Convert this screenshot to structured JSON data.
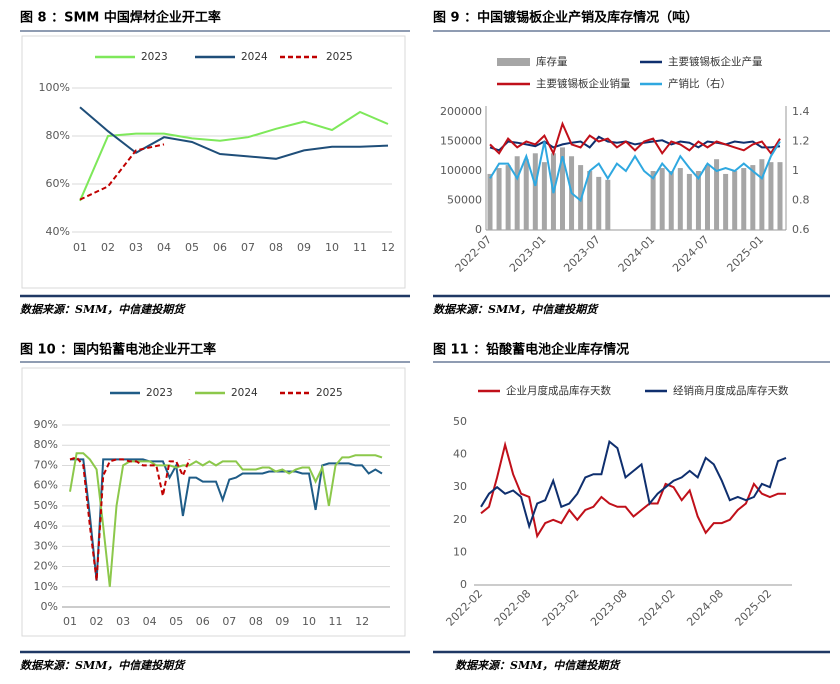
{
  "chart_data": [
    {
      "type": "line",
      "title": "图 8 ：SMM 中国焊材企业开工率",
      "source": "数据来源：SMM，中信建投期货",
      "categories": [
        "01",
        "02",
        "03",
        "04",
        "05",
        "06",
        "07",
        "08",
        "09",
        "10",
        "11",
        "12"
      ],
      "series": [
        {
          "name": "2023",
          "color": "#7ee85a",
          "values": [
            53,
            80,
            81,
            81,
            79,
            78,
            79.5,
            83,
            86,
            82.5,
            90,
            85
          ]
        },
        {
          "name": "2024",
          "color": "#1f4e79",
          "values": [
            92,
            82,
            73,
            79.5,
            77.5,
            72.5,
            71.5,
            70.5,
            74,
            75.5,
            75.5,
            76
          ]
        },
        {
          "name": "2025",
          "color": "#c00000",
          "dashed": true,
          "values": [
            53.5,
            59,
            74,
            76.5,
            null,
            null,
            null,
            null,
            null,
            null,
            null,
            null
          ]
        }
      ],
      "ylim": [
        40,
        100
      ],
      "yticks": [
        {
          "value": 40,
          "label": "40%"
        },
        {
          "value": 60,
          "label": "60%"
        },
        {
          "value": 80,
          "label": "80%"
        },
        {
          "value": 100,
          "label": "100%"
        }
      ],
      "grid": true
    },
    {
      "type": "combo",
      "title": "图 9 ：中国镀锡板企业产销及库存情况（吨）",
      "source": "数据来源：SMM，中信建投期货",
      "categories": [
        "2022-07",
        null,
        null,
        null,
        null,
        null,
        "2023-01",
        null,
        null,
        null,
        null,
        null,
        "2023-07",
        null,
        null,
        null,
        null,
        null,
        "2024-01",
        null,
        null,
        null,
        null,
        null,
        "2024-07",
        null,
        null,
        null,
        null,
        null,
        "2025-01",
        null,
        null
      ],
      "series": [
        {
          "name": "库存量",
          "type": "bar",
          "color": "#a6a6a6",
          "values": [
            95000,
            105000,
            110000,
            125000,
            120000,
            130000,
            115000,
            130000,
            140000,
            125000,
            110000,
            100000,
            90000,
            85000,
            null,
            null,
            null,
            null,
            100000,
            105000,
            100000,
            105000,
            95000,
            100000,
            110000,
            120000,
            95000,
            100000,
            105000,
            110000,
            120000,
            115000,
            115000
          ]
        },
        {
          "name": "主要镀锡板企业产量",
          "type": "line",
          "color": "#0f2f6e",
          "values": [
            140000,
            135000,
            150000,
            148000,
            145000,
            142000,
            150000,
            140000,
            145000,
            148000,
            150000,
            140000,
            158000,
            150000,
            148000,
            150000,
            145000,
            148000,
            150000,
            152000,
            145000,
            150000,
            148000,
            140000,
            150000,
            148000,
            145000,
            150000,
            148000,
            150000,
            140000,
            140000,
            142000
          ]
        },
        {
          "name": "主要镀锡板企业销量",
          "type": "line",
          "color": "#c0101a",
          "values": [
            145000,
            130000,
            155000,
            140000,
            150000,
            145000,
            160000,
            130000,
            180000,
            145000,
            140000,
            160000,
            150000,
            155000,
            140000,
            150000,
            135000,
            150000,
            155000,
            130000,
            150000,
            145000,
            135000,
            150000,
            140000,
            150000,
            145000,
            140000,
            135000,
            145000,
            150000,
            130000,
            155000
          ]
        },
        {
          "name": "产销比（右）",
          "type": "line",
          "axis": "y2",
          "color": "#2fa8e0",
          "values": [
            0.95,
            1.05,
            1.05,
            0.95,
            1.1,
            0.9,
            1.2,
            0.85,
            1.1,
            0.85,
            0.8,
            1.0,
            1.05,
            0.95,
            1.05,
            1.0,
            1.1,
            1.0,
            0.95,
            1.05,
            0.98,
            1.1,
            1.02,
            0.95,
            1.05,
            1.0,
            1.02,
            1.0,
            1.05,
            1.0,
            0.95,
            1.1,
            1.2
          ]
        }
      ],
      "ylim": [
        0,
        200000
      ],
      "yticks": [
        0,
        50000,
        100000,
        150000,
        200000
      ],
      "y2lim": [
        0.6,
        1.4
      ],
      "y2ticks": [
        0.6,
        0.8,
        1,
        1.2,
        1.4
      ],
      "grid": false
    },
    {
      "type": "line",
      "title": "图 10 ：国内铅蓄电池企业开工率",
      "source": "数据来源：SMM，中信建投期货",
      "categories": [
        "01",
        null,
        null,
        null,
        "02",
        null,
        null,
        null,
        "03",
        null,
        null,
        null,
        "04",
        null,
        null,
        null,
        "05",
        null,
        null,
        null,
        "06",
        null,
        null,
        null,
        "07",
        null,
        null,
        null,
        "08",
        null,
        null,
        null,
        "09",
        null,
        null,
        null,
        "10",
        null,
        null,
        null,
        "11",
        null,
        null,
        null,
        "12",
        null,
        null,
        null
      ],
      "series": [
        {
          "name": "2023",
          "color": "#1f5c87",
          "values": [
            73,
            73,
            73,
            45,
            13,
            73,
            73,
            73,
            73,
            73,
            73,
            73,
            72,
            72,
            72,
            64,
            70,
            45,
            64,
            64,
            62,
            62,
            62,
            53,
            63,
            64,
            66,
            66,
            66,
            66,
            67,
            67,
            67,
            67,
            67,
            66,
            66,
            48,
            70,
            71,
            71,
            71,
            71,
            70,
            70,
            66,
            68,
            66
          ]
        },
        {
          "name": "2024",
          "color": "#8cc84b",
          "values": [
            57,
            76,
            76,
            73,
            68,
            40,
            10,
            50,
            70,
            72,
            72,
            72,
            72,
            70,
            70,
            70,
            69,
            70,
            70,
            72,
            70,
            72,
            70,
            72,
            72,
            72,
            68,
            68,
            68,
            69,
            69,
            67,
            68,
            66,
            68,
            69,
            69,
            62,
            69,
            50,
            70,
            74,
            74,
            75,
            75,
            75,
            75,
            74
          ]
        },
        {
          "name": "2025",
          "color": "#c00000",
          "dashed": true,
          "values": [
            73,
            74,
            70,
            40,
            13,
            65,
            72,
            73,
            73,
            72,
            72,
            70,
            70,
            70,
            55,
            72,
            72,
            65,
            73,
            null,
            null,
            null,
            null,
            null,
            null,
            null,
            null,
            null,
            null,
            null,
            null,
            null,
            null,
            null,
            null,
            null,
            null,
            null,
            null,
            null,
            null,
            null,
            null,
            null,
            null,
            null,
            null,
            null
          ]
        }
      ],
      "ylim": [
        0,
        90
      ],
      "yticks": [
        {
          "value": 0,
          "label": "0%"
        },
        {
          "value": 10,
          "label": "10%"
        },
        {
          "value": 20,
          "label": "20%"
        },
        {
          "value": 30,
          "label": "30%"
        },
        {
          "value": 40,
          "label": "40%"
        },
        {
          "value": 50,
          "label": "50%"
        },
        {
          "value": 60,
          "label": "60%"
        },
        {
          "value": 70,
          "label": "70%"
        },
        {
          "value": 80,
          "label": "80%"
        },
        {
          "value": 90,
          "label": "90%"
        }
      ],
      "grid": true
    },
    {
      "type": "line",
      "title": "图 11 ：铅酸蓄电池企业库存情况",
      "source": "数据来源：SMM，中信建投期货",
      "categories": [
        "2022-02",
        null,
        null,
        null,
        null,
        null,
        "2022-08",
        null,
        null,
        null,
        null,
        null,
        "2023-02",
        null,
        null,
        null,
        null,
        null,
        "2023-08",
        null,
        null,
        null,
        null,
        null,
        "2024-02",
        null,
        null,
        null,
        null,
        null,
        "2024-08",
        null,
        null,
        null,
        null,
        null,
        "2025-02",
        null,
        null
      ],
      "series": [
        {
          "name": "企业月度成品库存天数",
          "color": "#c0101a",
          "values": [
            22,
            24,
            33,
            43,
            34,
            28,
            27,
            15,
            19,
            20,
            19,
            23,
            20,
            23,
            24,
            27,
            25,
            24,
            24,
            21,
            23,
            25,
            25,
            31,
            30,
            26,
            29,
            21,
            16,
            19,
            19,
            20,
            23,
            25,
            31,
            28,
            27,
            28,
            28
          ]
        },
        {
          "name": "经销商月度成品库存天数",
          "color": "#0f2f6e",
          "values": [
            24,
            28,
            30,
            28,
            29,
            27,
            18,
            25,
            26,
            32,
            24,
            25,
            28,
            33,
            34,
            34,
            44,
            42,
            33,
            35,
            37,
            25,
            28,
            30,
            32,
            33,
            35,
            33,
            39,
            37,
            32,
            26,
            27,
            26,
            27,
            31,
            30,
            38,
            39
          ]
        }
      ],
      "ylim": [
        0,
        50
      ],
      "yticks": [
        0,
        10,
        20,
        30,
        40,
        50
      ],
      "grid": false
    }
  ]
}
